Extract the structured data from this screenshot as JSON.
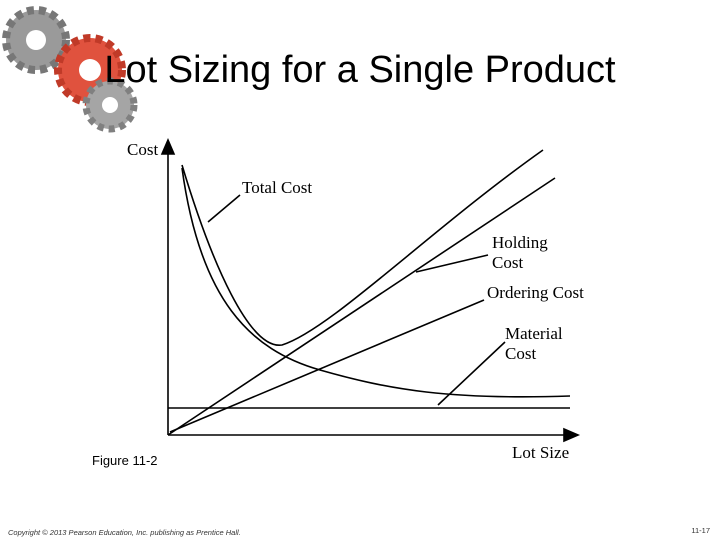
{
  "header": {
    "title": "Lot Sizing for a Single Product"
  },
  "diagram": {
    "y_axis_label": "Cost",
    "x_axis_label": "Lot Size",
    "labels": {
      "total_cost": [
        "Total Cost"
      ],
      "holding_cost": [
        "Holding",
        "Cost"
      ],
      "ordering_cost": [
        "Ordering Cost"
      ],
      "material_cost": [
        "Material",
        "Cost"
      ]
    },
    "caption": "Figure 11-2"
  },
  "footer": {
    "copyright": "Copyright © 2013 Pearson Education, Inc. publishing as Prentice Hall.",
    "page": "11-17"
  }
}
